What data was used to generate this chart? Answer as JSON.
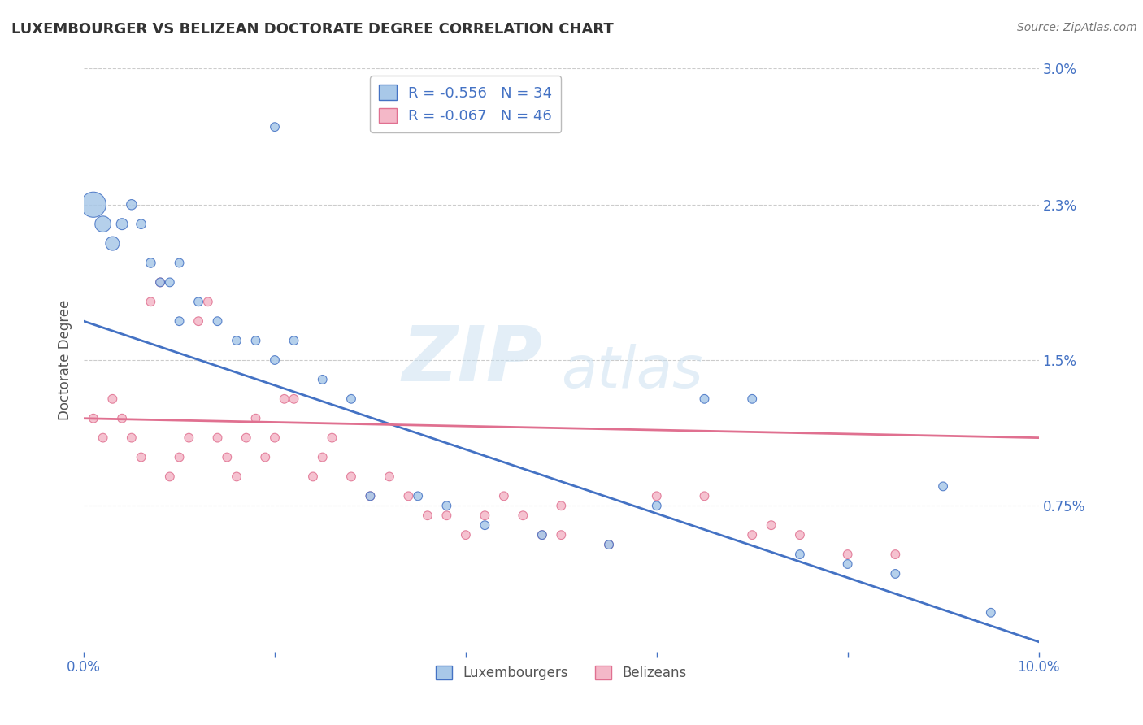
{
  "title": "LUXEMBOURGER VS BELIZEAN DOCTORATE DEGREE CORRELATION CHART",
  "source_text": "Source: ZipAtlas.com",
  "ylabel": "Doctorate Degree",
  "xlim": [
    0.0,
    0.1
  ],
  "ylim": [
    0.0,
    0.03
  ],
  "ytick_positions": [
    0.0075,
    0.015,
    0.023,
    0.03
  ],
  "ytick_labels": [
    "0.75%",
    "1.5%",
    "2.3%",
    "3.0%"
  ],
  "blue_color": "#a8c8e8",
  "pink_color": "#f4b8c8",
  "blue_line_color": "#4472c4",
  "pink_line_color": "#e07090",
  "legend_r_blue": "R = -0.556",
  "legend_n_blue": "N = 34",
  "legend_r_pink": "R = -0.067",
  "legend_n_pink": "N = 46",
  "blue_trend_x0": 0.0,
  "blue_trend_y0": 0.017,
  "blue_trend_x1": 0.1,
  "blue_trend_y1": 0.0005,
  "pink_trend_x0": 0.0,
  "pink_trend_y0": 0.012,
  "pink_trend_x1": 0.1,
  "pink_trend_y1": 0.011,
  "blue_scatter_x": [
    0.001,
    0.002,
    0.003,
    0.004,
    0.005,
    0.006,
    0.007,
    0.008,
    0.009,
    0.01,
    0.012,
    0.014,
    0.016,
    0.018,
    0.02,
    0.022,
    0.025,
    0.028,
    0.03,
    0.035,
    0.038,
    0.042,
    0.048,
    0.055,
    0.06,
    0.065,
    0.07,
    0.075,
    0.08,
    0.085,
    0.09,
    0.095,
    0.02,
    0.01
  ],
  "blue_scatter_y": [
    0.023,
    0.022,
    0.021,
    0.022,
    0.023,
    0.022,
    0.02,
    0.019,
    0.019,
    0.02,
    0.018,
    0.017,
    0.016,
    0.016,
    0.015,
    0.016,
    0.014,
    0.013,
    0.008,
    0.008,
    0.0075,
    0.0065,
    0.006,
    0.0055,
    0.0075,
    0.013,
    0.013,
    0.005,
    0.0045,
    0.004,
    0.0085,
    0.002,
    0.027,
    0.017
  ],
  "blue_scatter_s": [
    500,
    200,
    150,
    100,
    80,
    70,
    70,
    60,
    60,
    60,
    60,
    60,
    60,
    60,
    60,
    60,
    60,
    60,
    60,
    60,
    60,
    60,
    60,
    60,
    60,
    60,
    60,
    60,
    60,
    60,
    60,
    60,
    60,
    60
  ],
  "pink_scatter_x": [
    0.001,
    0.002,
    0.003,
    0.004,
    0.005,
    0.006,
    0.007,
    0.008,
    0.009,
    0.01,
    0.011,
    0.012,
    0.013,
    0.014,
    0.015,
    0.016,
    0.017,
    0.018,
    0.019,
    0.02,
    0.021,
    0.022,
    0.024,
    0.025,
    0.026,
    0.028,
    0.03,
    0.032,
    0.034,
    0.036,
    0.038,
    0.04,
    0.042,
    0.044,
    0.046,
    0.048,
    0.05,
    0.055,
    0.06,
    0.065,
    0.07,
    0.075,
    0.08,
    0.085,
    0.05,
    0.072
  ],
  "pink_scatter_y": [
    0.012,
    0.011,
    0.013,
    0.012,
    0.011,
    0.01,
    0.018,
    0.019,
    0.009,
    0.01,
    0.011,
    0.017,
    0.018,
    0.011,
    0.01,
    0.009,
    0.011,
    0.012,
    0.01,
    0.011,
    0.013,
    0.013,
    0.009,
    0.01,
    0.011,
    0.009,
    0.008,
    0.009,
    0.008,
    0.007,
    0.007,
    0.006,
    0.007,
    0.008,
    0.007,
    0.006,
    0.006,
    0.0055,
    0.008,
    0.008,
    0.006,
    0.006,
    0.005,
    0.005,
    0.0075,
    0.0065
  ],
  "pink_scatter_s": [
    60,
    60,
    60,
    60,
    60,
    60,
    60,
    60,
    60,
    60,
    60,
    60,
    60,
    60,
    60,
    60,
    60,
    60,
    60,
    60,
    60,
    60,
    60,
    60,
    60,
    60,
    60,
    60,
    60,
    60,
    60,
    60,
    60,
    60,
    60,
    60,
    60,
    60,
    60,
    60,
    60,
    60,
    60,
    60,
    60,
    60
  ],
  "watermark_zip": "ZIP",
  "watermark_atlas": "atlas",
  "background_color": "#ffffff",
  "grid_color": "#cccccc"
}
